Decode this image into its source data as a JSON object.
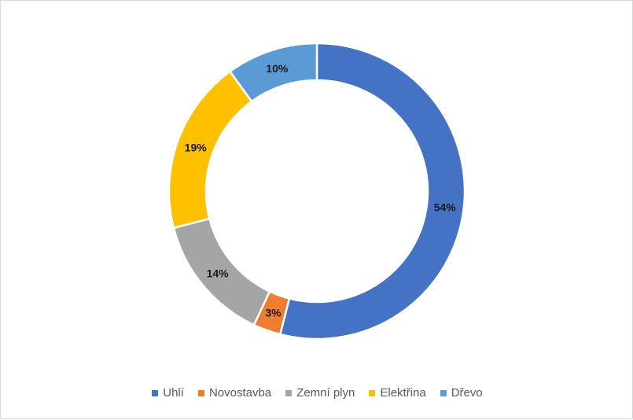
{
  "chart_data": {
    "type": "pie",
    "variant": "donut",
    "title": "",
    "legend_position": "bottom",
    "categories": [
      "Uhlí",
      "Novostavba",
      "Zemní plyn",
      "Elektřina",
      "Dřevo"
    ],
    "values": [
      54,
      3,
      14,
      19,
      10
    ],
    "labels": [
      "54%",
      "3%",
      "14%",
      "19%",
      "10%"
    ],
    "colors": [
      "#4472c4",
      "#ed7d31",
      "#a5a5a5",
      "#ffc000",
      "#5b9bd5"
    ]
  }
}
